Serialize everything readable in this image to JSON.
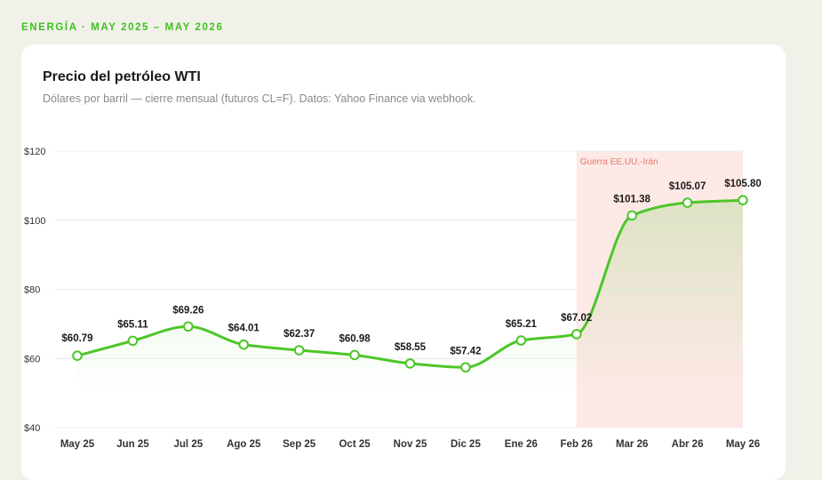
{
  "header": {
    "kicker": "ENERGÍA · MAY 2025 – MAY 2026"
  },
  "chart_data": {
    "type": "line",
    "title": "Precio del petróleo WTI",
    "subtitle": "Dólares por barril — cierre mensual (futuros CL=F). Datos: Yahoo Finance via webhook.",
    "categories": [
      "May 25",
      "Jun 25",
      "Jul 25",
      "Ago 25",
      "Sep 25",
      "Oct 25",
      "Nov 25",
      "Dic 25",
      "Ene 26",
      "Feb 26",
      "Mar 26",
      "Abr 26",
      "May 26"
    ],
    "values": [
      60.79,
      65.11,
      69.26,
      64.01,
      62.37,
      60.98,
      58.55,
      57.42,
      65.21,
      67.02,
      101.38,
      105.07,
      105.8
    ],
    "data_labels": [
      "$60.79",
      "$65.11",
      "$69.26",
      "$64.01",
      "$62.37",
      "$60.98",
      "$58.55",
      "$57.42",
      "$65.21",
      "$67.02",
      "$101.38",
      "$105.07",
      "$105.80"
    ],
    "yticks": [
      40,
      60,
      80,
      100,
      120
    ],
    "ytick_labels": [
      "$40",
      "$60",
      "$80",
      "$100",
      "$120"
    ],
    "ylim": [
      40,
      120
    ],
    "grid": true,
    "line_color": "#4cc628",
    "highlight": {
      "label": "Guerra EE.UU.-Irán",
      "from": "Feb 26",
      "to": "May 26",
      "color": "#fde9e6"
    }
  }
}
